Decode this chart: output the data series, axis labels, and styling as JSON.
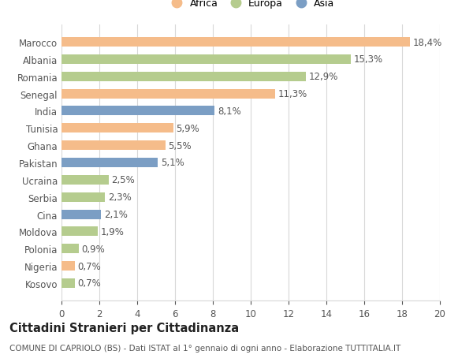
{
  "countries": [
    "Marocco",
    "Albania",
    "Romania",
    "Senegal",
    "India",
    "Tunisia",
    "Ghana",
    "Pakistan",
    "Ucraina",
    "Serbia",
    "Cina",
    "Moldova",
    "Polonia",
    "Nigeria",
    "Kosovo"
  ],
  "values": [
    18.4,
    15.3,
    12.9,
    11.3,
    8.1,
    5.9,
    5.5,
    5.1,
    2.5,
    2.3,
    2.1,
    1.9,
    0.9,
    0.7,
    0.7
  ],
  "labels": [
    "18,4%",
    "15,3%",
    "12,9%",
    "11,3%",
    "8,1%",
    "5,9%",
    "5,5%",
    "5,1%",
    "2,5%",
    "2,3%",
    "2,1%",
    "1,9%",
    "0,9%",
    "0,7%",
    "0,7%"
  ],
  "continent": [
    "Africa",
    "Europa",
    "Europa",
    "Africa",
    "Asia",
    "Africa",
    "Africa",
    "Asia",
    "Europa",
    "Europa",
    "Asia",
    "Europa",
    "Europa",
    "Africa",
    "Europa"
  ],
  "colors": {
    "Africa": "#F5BC8A",
    "Europa": "#B5CC8E",
    "Asia": "#7B9EC4"
  },
  "legend_labels": [
    "Africa",
    "Europa",
    "Asia"
  ],
  "legend_colors": [
    "#F5BC8A",
    "#B5CC8E",
    "#7B9EC4"
  ],
  "xlim": [
    0,
    20
  ],
  "xticks": [
    0,
    2,
    4,
    6,
    8,
    10,
    12,
    14,
    16,
    18,
    20
  ],
  "title": "Cittadini Stranieri per Cittadinanza",
  "subtitle": "COMUNE DI CAPRIOLO (BS) - Dati ISTAT al 1° gennaio di ogni anno - Elaborazione TUTTITALIA.IT",
  "background_color": "#ffffff",
  "bar_height": 0.55,
  "grid_color": "#d8d8d8",
  "label_fontsize": 8.5,
  "tick_fontsize": 8.5,
  "title_fontsize": 10.5,
  "subtitle_fontsize": 7.5
}
